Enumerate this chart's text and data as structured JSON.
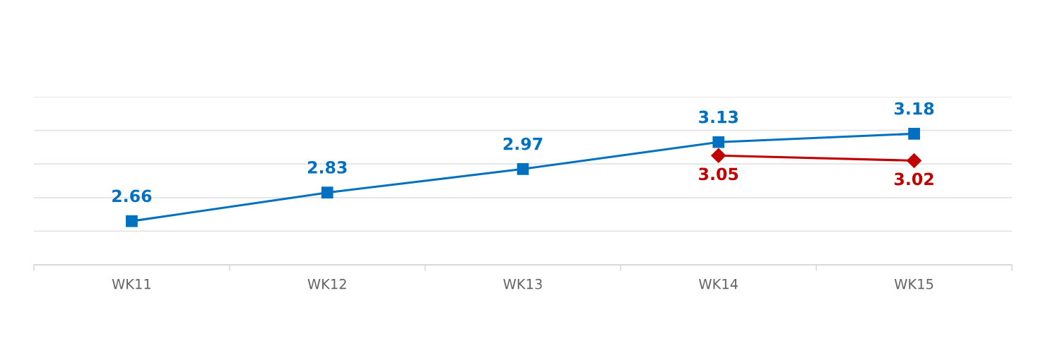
{
  "chart_data": {
    "type": "line",
    "categories": [
      "WK11",
      "WK12",
      "WK13",
      "WK14",
      "WK15"
    ],
    "series": [
      {
        "color": "#0070c0",
        "marker": "square",
        "values": [
          2.66,
          2.83,
          2.97,
          3.13,
          3.18
        ]
      },
      {
        "color": "#c00000",
        "marker": "diamond",
        "values": [
          null,
          null,
          null,
          3.05,
          3.02
        ]
      }
    ],
    "ylim": [
      2.4,
      3.4
    ],
    "yticks": [
      {
        "value": 2.4,
        "label": null
      },
      {
        "value": 2.6,
        "label": null
      },
      {
        "value": 2.8,
        "label": null
      },
      {
        "value": 3.0,
        "label": null
      },
      {
        "value": 3.2,
        "label": null
      },
      {
        "value": 3.4,
        "label": null
      }
    ],
    "grid": "y",
    "tick_labels": "x",
    "data_labels": true
  }
}
